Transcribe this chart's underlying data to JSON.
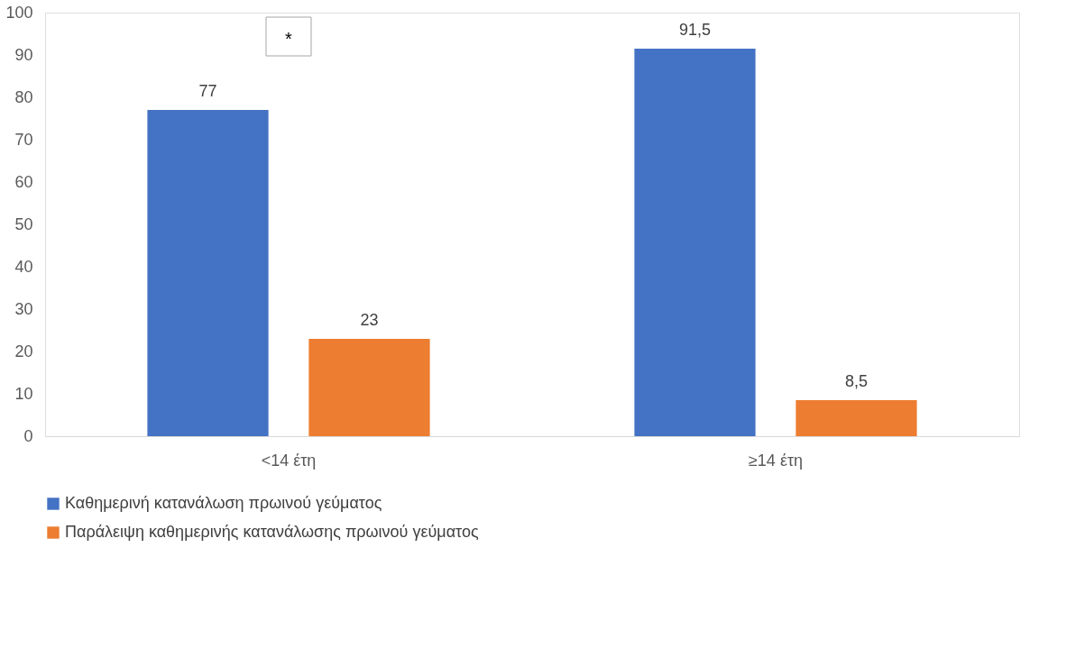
{
  "chart_data": {
    "type": "bar",
    "categories": [
      "<14 έτη",
      "≥14 έτη"
    ],
    "series": [
      {
        "name": "Καθημερινή κατανάλωση πρωινού γεύματος",
        "color": "#4472c4",
        "values": [
          77,
          91.5
        ],
        "value_labels": [
          "77",
          "91,5"
        ]
      },
      {
        "name": "Παράλειψη καθημερινής κατανάλωσης πρωινού γεύματος",
        "color": "#ed7d31",
        "values": [
          23,
          8.5
        ],
        "value_labels": [
          "23",
          "8,5"
        ]
      }
    ],
    "ylim": [
      0,
      100
    ],
    "yticks": [
      0,
      10,
      20,
      30,
      40,
      50,
      60,
      70,
      80,
      90,
      100
    ],
    "grid": false,
    "legend": "bottom",
    "annotations": [
      "*"
    ]
  }
}
